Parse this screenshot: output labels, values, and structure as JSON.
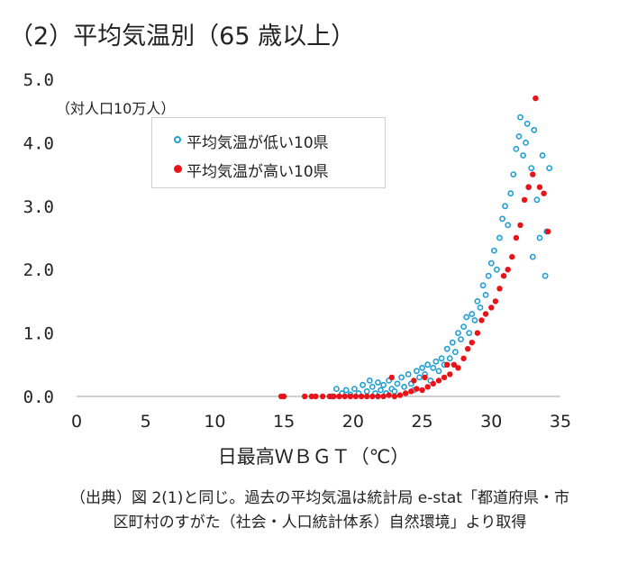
{
  "title": "（2）平均気温別（65 歳以上）",
  "source": {
    "line1": "（出典）図 2(1)と同じ。過去の平均気温は統計局 e-stat「都道府県・市",
    "line2": "区町村のすがた（社会・人口統計体系）自然環境」より取得"
  },
  "colors": {
    "low": "#1f9fd6",
    "high": "#e8141a",
    "axis": "#bfbfbf",
    "text": "#222222"
  },
  "chart_data": {
    "type": "scatter",
    "title": "",
    "xlabel": "日最高ＷＢＧＴ（℃）",
    "ylabel": "（対人口10万人）",
    "xlim": [
      0,
      35
    ],
    "ylim": [
      0,
      5
    ],
    "x_ticks": [
      "0",
      "5",
      "10",
      "15",
      "20",
      "25",
      "30",
      "35"
    ],
    "y_ticks": [
      "0.0",
      "1.0",
      "2.0",
      "3.0",
      "4.0",
      "5.0"
    ],
    "grid": false,
    "legend_position": "top-left",
    "series": [
      {
        "name": "平均気温が低い10県",
        "marker": "open-circle",
        "color": "#1f9fd6",
        "points": [
          [
            18.5,
            0.0
          ],
          [
            18.8,
            0.12
          ],
          [
            19.2,
            0.05
          ],
          [
            19.5,
            0.1
          ],
          [
            19.8,
            0.03
          ],
          [
            20.1,
            0.12
          ],
          [
            20.4,
            0.05
          ],
          [
            20.7,
            0.18
          ],
          [
            21.0,
            0.08
          ],
          [
            21.2,
            0.25
          ],
          [
            21.4,
            0.15
          ],
          [
            21.6,
            0.05
          ],
          [
            21.8,
            0.22
          ],
          [
            22.0,
            0.1
          ],
          [
            22.2,
            0.18
          ],
          [
            22.4,
            0.05
          ],
          [
            22.6,
            0.25
          ],
          [
            22.8,
            0.12
          ],
          [
            23.0,
            0.08
          ],
          [
            23.2,
            0.2
          ],
          [
            23.5,
            0.3
          ],
          [
            23.7,
            0.15
          ],
          [
            24.0,
            0.35
          ],
          [
            24.2,
            0.2
          ],
          [
            24.4,
            0.1
          ],
          [
            24.6,
            0.4
          ],
          [
            24.8,
            0.3
          ],
          [
            25.0,
            0.45
          ],
          [
            25.2,
            0.35
          ],
          [
            25.4,
            0.5
          ],
          [
            25.6,
            0.25
          ],
          [
            25.8,
            0.45
          ],
          [
            26.0,
            0.55
          ],
          [
            26.2,
            0.4
          ],
          [
            26.4,
            0.6
          ],
          [
            26.6,
            0.5
          ],
          [
            26.8,
            0.75
          ],
          [
            27.0,
            0.6
          ],
          [
            27.2,
            0.85
          ],
          [
            27.4,
            0.7
          ],
          [
            27.6,
            1.0
          ],
          [
            27.8,
            0.9
          ],
          [
            28.0,
            1.1
          ],
          [
            28.2,
            1.25
          ],
          [
            28.4,
            1.0
          ],
          [
            28.6,
            1.3
          ],
          [
            28.8,
            1.2
          ],
          [
            29.0,
            1.5
          ],
          [
            29.2,
            1.4
          ],
          [
            29.4,
            1.75
          ],
          [
            29.6,
            1.6
          ],
          [
            29.8,
            1.9
          ],
          [
            30.0,
            2.1
          ],
          [
            30.2,
            2.3
          ],
          [
            30.4,
            2.0
          ],
          [
            30.6,
            2.5
          ],
          [
            30.8,
            2.8
          ],
          [
            31.0,
            3.0
          ],
          [
            31.2,
            2.7
          ],
          [
            31.4,
            3.2
          ],
          [
            31.6,
            3.5
          ],
          [
            31.8,
            3.9
          ],
          [
            32.0,
            4.1
          ],
          [
            32.1,
            4.4
          ],
          [
            32.3,
            3.8
          ],
          [
            32.5,
            4.0
          ],
          [
            32.7,
            3.3
          ],
          [
            32.9,
            3.6
          ],
          [
            33.1,
            4.2
          ],
          [
            33.3,
            3.1
          ],
          [
            33.5,
            2.5
          ],
          [
            33.7,
            3.8
          ],
          [
            33.9,
            1.9
          ],
          [
            34.0,
            2.6
          ],
          [
            34.2,
            3.6
          ],
          [
            33.0,
            2.2
          ],
          [
            32.6,
            4.3
          ]
        ]
      },
      {
        "name": "平均気温が高い10県",
        "marker": "filled-circle",
        "color": "#e8141a",
        "points": [
          [
            14.8,
            0.0
          ],
          [
            15.0,
            0.0
          ],
          [
            16.5,
            0.0
          ],
          [
            17.0,
            0.0
          ],
          [
            17.3,
            0.0
          ],
          [
            17.8,
            0.0
          ],
          [
            18.3,
            0.0
          ],
          [
            18.6,
            0.0
          ],
          [
            19.0,
            0.0
          ],
          [
            19.4,
            0.0
          ],
          [
            19.8,
            0.0
          ],
          [
            20.2,
            0.0
          ],
          [
            20.6,
            0.0
          ],
          [
            21.0,
            0.0
          ],
          [
            21.4,
            0.0
          ],
          [
            21.8,
            0.0
          ],
          [
            22.2,
            0.0
          ],
          [
            22.6,
            0.02
          ],
          [
            23.0,
            0.0
          ],
          [
            23.4,
            0.02
          ],
          [
            23.8,
            0.05
          ],
          [
            24.2,
            0.08
          ],
          [
            24.6,
            0.12
          ],
          [
            25.0,
            0.1
          ],
          [
            25.4,
            0.15
          ],
          [
            25.8,
            0.2
          ],
          [
            26.2,
            0.25
          ],
          [
            26.6,
            0.3
          ],
          [
            27.0,
            0.35
          ],
          [
            27.3,
            0.5
          ],
          [
            27.6,
            0.45
          ],
          [
            28.0,
            0.6
          ],
          [
            28.3,
            0.75
          ],
          [
            28.6,
            0.85
          ],
          [
            29.0,
            1.0
          ],
          [
            29.3,
            1.2
          ],
          [
            29.6,
            1.3
          ],
          [
            30.0,
            1.4
          ],
          [
            30.3,
            1.5
          ],
          [
            30.6,
            1.7
          ],
          [
            30.9,
            1.9
          ],
          [
            31.2,
            2.0
          ],
          [
            31.5,
            2.2
          ],
          [
            31.8,
            2.5
          ],
          [
            32.1,
            2.7
          ],
          [
            32.4,
            3.1
          ],
          [
            32.7,
            3.3
          ],
          [
            33.0,
            3.5
          ],
          [
            33.2,
            4.7
          ],
          [
            33.5,
            3.3
          ],
          [
            33.8,
            3.2
          ],
          [
            34.1,
            2.6
          ],
          [
            22.8,
            0.3
          ],
          [
            24.4,
            0.25
          ],
          [
            25.2,
            0.3
          ],
          [
            26.8,
            0.5
          ]
        ]
      }
    ]
  }
}
